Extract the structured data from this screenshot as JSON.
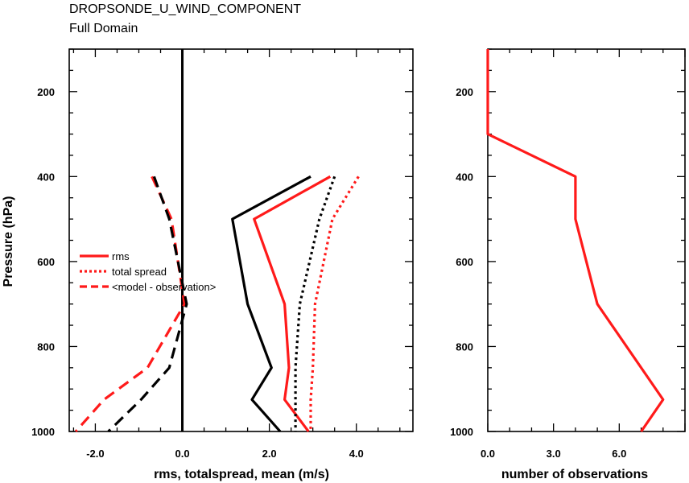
{
  "header": {
    "title": "DROPSONDE_U_WIND_COMPONENT",
    "subtitle": "Full Domain"
  },
  "colors": {
    "red": "#ff1a1a",
    "black": "#000000"
  },
  "chart_data": [
    {
      "type": "line",
      "ylabel": "Pressure (hPa)",
      "xlabel": "rms, totalspread, mean (m/s)",
      "xlim": [
        -2.6,
        5.3
      ],
      "ylim": [
        1000,
        100
      ],
      "y_reversed": true,
      "xticks": [
        -2.0,
        0.0,
        2.0,
        4.0
      ],
      "xtick_labels": [
        "-2.0",
        "0.0",
        "2.0",
        "4.0"
      ],
      "yticks": [
        200,
        400,
        600,
        800,
        1000
      ],
      "ytick_labels": [
        "200",
        "400",
        "600",
        "800",
        "1000"
      ],
      "legend": {
        "placement": "left-middle",
        "entries": [
          {
            "label": "rms",
            "style": "solid"
          },
          {
            "label": "total spread",
            "style": "dotted"
          },
          {
            "label": "<model - observation>",
            "style": "dashed"
          }
        ]
      },
      "series": [
        {
          "color": "#ff1a1a",
          "style": "solid",
          "x": [
            3.4,
            1.65,
            2.35,
            2.45,
            2.35,
            2.9
          ],
          "y": [
            400,
            500,
            700,
            850,
            925,
            1000
          ]
        },
        {
          "color": "#000000",
          "style": "solid",
          "x": [
            2.95,
            1.15,
            1.5,
            2.05,
            1.6,
            2.25
          ],
          "y": [
            400,
            500,
            700,
            850,
            925,
            1000
          ]
        },
        {
          "color": "#ff1a1a",
          "style": "dotted",
          "x": [
            4.05,
            3.45,
            3.05,
            3.0,
            2.95,
            2.95
          ],
          "y": [
            400,
            500,
            700,
            850,
            925,
            1000
          ]
        },
        {
          "color": "#000000",
          "style": "dotted",
          "x": [
            3.5,
            3.15,
            2.7,
            2.6,
            2.6,
            2.6
          ],
          "y": [
            400,
            500,
            700,
            850,
            925,
            1000
          ]
        },
        {
          "color": "#ff1a1a",
          "style": "dashed",
          "x": [
            -0.7,
            -0.25,
            0.05,
            -0.8,
            -1.8,
            -2.45
          ],
          "y": [
            400,
            500,
            700,
            850,
            925,
            1000
          ]
        },
        {
          "color": "#000000",
          "style": "dashed",
          "x": [
            -0.65,
            -0.3,
            0.1,
            -0.3,
            -0.95,
            -1.7
          ],
          "y": [
            400,
            500,
            700,
            850,
            925,
            1000
          ]
        }
      ],
      "zero_line": {
        "x": 0,
        "color": "#000000"
      }
    },
    {
      "type": "line",
      "ylabel": "",
      "xlabel": "number of observations",
      "xlim": [
        0,
        9.0
      ],
      "ylim": [
        1000,
        100
      ],
      "y_reversed": true,
      "xticks": [
        0,
        3,
        6
      ],
      "xtick_labels": [
        "0.0",
        "3.0",
        "6.0"
      ],
      "yticks": [
        200,
        400,
        600,
        800,
        1000
      ],
      "ytick_labels": [
        "200",
        "400",
        "600",
        "800",
        "1000"
      ],
      "series": [
        {
          "color": "#ff1a1a",
          "style": "solid",
          "x": [
            0,
            0,
            4,
            4,
            5,
            8,
            7
          ],
          "y": [
            100,
            300,
            400,
            500,
            700,
            925,
            1000
          ]
        }
      ]
    }
  ]
}
